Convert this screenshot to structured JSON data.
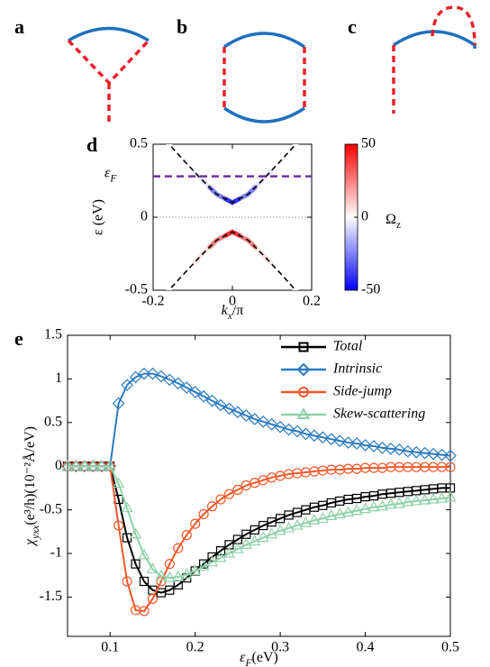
{
  "diagram_labels": [
    "a",
    "b",
    "c"
  ],
  "chart_data": [
    {
      "type": "band",
      "label": "d",
      "ylabel": "ε (eV)",
      "xlabel": [
        "k",
        "x",
        "/π"
      ],
      "xlim": [
        -0.2,
        0.2
      ],
      "xticks": [
        -0.2,
        0,
        0.2
      ],
      "ylim": [
        -0.5,
        0.5
      ],
      "yticks": [
        -0.5,
        0,
        0.5
      ],
      "x": [
        -0.2,
        -0.16,
        -0.12,
        -0.08,
        -0.04,
        0,
        0.04,
        0.08,
        0.12,
        0.16,
        0.2
      ],
      "series": [
        {
          "color": "#000000",
          "values": [
            0.62,
            0.5,
            0.381,
            0.265,
            0.158,
            0.1,
            0.158,
            0.265,
            0.381,
            0.5,
            0.62
          ],
          "omega": [
            0,
            0,
            0,
            -5,
            -25,
            -40,
            -25,
            -5,
            0,
            0,
            0
          ]
        },
        {
          "color": "#000000",
          "values": [
            -0.62,
            -0.5,
            -0.381,
            -0.265,
            -0.158,
            -0.1,
            -0.158,
            -0.265,
            -0.381,
            -0.5,
            -0.62
          ],
          "omega": [
            0,
            0,
            0,
            5,
            25,
            40,
            25,
            5,
            0,
            0,
            0
          ]
        }
      ],
      "fermi_level": 0.28,
      "fermi_label": [
        "ε",
        "F"
      ],
      "fermi_color": "#7030a0",
      "colorbar": {
        "label": [
          "Ω",
          "z"
        ],
        "lim": [
          -50,
          50
        ],
        "ticks": [
          -50,
          0,
          50
        ],
        "colors": [
          "#0000ff",
          "#ffffff",
          "#ff0000"
        ]
      }
    },
    {
      "type": "line",
      "label": "e",
      "ylabel": [
        "χ",
        "yxx",
        "(e³/h)(10⁻²Å/eV)"
      ],
      "xlabel": [
        "ε",
        "F",
        "(eV)"
      ],
      "xlim": [
        0.05,
        0.5
      ],
      "xticks": [
        0.1,
        0.2,
        0.3,
        0.4,
        0.5
      ],
      "ylim": [
        -1.95,
        1.5
      ],
      "yticks": [
        -1.5,
        -1,
        -0.5,
        0,
        0.5,
        1,
        1.5
      ],
      "legend": "upper right",
      "x": [
        0.05,
        0.06,
        0.07,
        0.08,
        0.09,
        0.1,
        0.11,
        0.12,
        0.13,
        0.14,
        0.15,
        0.16,
        0.17,
        0.18,
        0.19,
        0.2,
        0.21,
        0.22,
        0.23,
        0.24,
        0.25,
        0.26,
        0.27,
        0.28,
        0.29,
        0.3,
        0.31,
        0.32,
        0.33,
        0.34,
        0.35,
        0.36,
        0.37,
        0.38,
        0.39,
        0.4,
        0.41,
        0.42,
        0.43,
        0.44,
        0.45,
        0.46,
        0.47,
        0.48,
        0.49,
        0.5
      ],
      "series": [
        {
          "name": "Total",
          "color": "#000000",
          "marker": "square",
          "values": [
            0,
            0,
            0,
            0,
            0,
            0,
            -0.38,
            -0.82,
            -1.12,
            -1.32,
            -1.42,
            -1.45,
            -1.42,
            -1.36,
            -1.28,
            -1.2,
            -1.12,
            -1.04,
            -0.97,
            -0.9,
            -0.84,
            -0.78,
            -0.73,
            -0.68,
            -0.64,
            -0.6,
            -0.56,
            -0.53,
            -0.5,
            -0.47,
            -0.45,
            -0.42,
            -0.4,
            -0.38,
            -0.37,
            -0.35,
            -0.34,
            -0.32,
            -0.31,
            -0.3,
            -0.29,
            -0.28,
            -0.27,
            -0.26,
            -0.25,
            -0.25
          ]
        },
        {
          "name": "Intrinsic",
          "color": "#2b7bc0",
          "marker": "diamond",
          "values": [
            0,
            0,
            0,
            0,
            0,
            0,
            0.72,
            0.93,
            1.02,
            1.06,
            1.06,
            1.03,
            0.99,
            0.95,
            0.9,
            0.85,
            0.8,
            0.75,
            0.7,
            0.66,
            0.62,
            0.58,
            0.54,
            0.51,
            0.48,
            0.45,
            0.42,
            0.4,
            0.37,
            0.35,
            0.33,
            0.31,
            0.29,
            0.27,
            0.26,
            0.24,
            0.23,
            0.21,
            0.2,
            0.19,
            0.17,
            0.16,
            0.15,
            0.14,
            0.13,
            0.12
          ]
        },
        {
          "name": "Side-jump",
          "color": "#f0582a",
          "marker": "circle",
          "values": [
            0,
            0,
            0,
            0,
            0,
            0,
            -0.68,
            -1.32,
            -1.65,
            -1.66,
            -1.52,
            -1.32,
            -1.12,
            -0.94,
            -0.79,
            -0.66,
            -0.55,
            -0.46,
            -0.38,
            -0.32,
            -0.27,
            -0.22,
            -0.19,
            -0.16,
            -0.13,
            -0.11,
            -0.09,
            -0.08,
            -0.07,
            -0.06,
            -0.05,
            -0.04,
            -0.04,
            -0.03,
            -0.03,
            -0.02,
            -0.02,
            -0.02,
            -0.01,
            -0.01,
            -0.01,
            -0.01,
            -0.01,
            -0.01,
            -0.01,
            -0.01
          ]
        },
        {
          "name": "Skew-scattering",
          "color": "#8ed1a9",
          "marker": "triangle",
          "values": [
            0,
            0,
            0,
            0,
            0,
            0,
            -0.2,
            -0.48,
            -0.78,
            -1.02,
            -1.18,
            -1.26,
            -1.28,
            -1.27,
            -1.24,
            -1.2,
            -1.15,
            -1.1,
            -1.05,
            -1,
            -0.95,
            -0.9,
            -0.86,
            -0.82,
            -0.78,
            -0.74,
            -0.71,
            -0.68,
            -0.65,
            -0.62,
            -0.6,
            -0.57,
            -0.55,
            -0.53,
            -0.51,
            -0.49,
            -0.47,
            -0.46,
            -0.44,
            -0.43,
            -0.41,
            -0.4,
            -0.39,
            -0.38,
            -0.37,
            -0.36
          ]
        }
      ]
    }
  ]
}
